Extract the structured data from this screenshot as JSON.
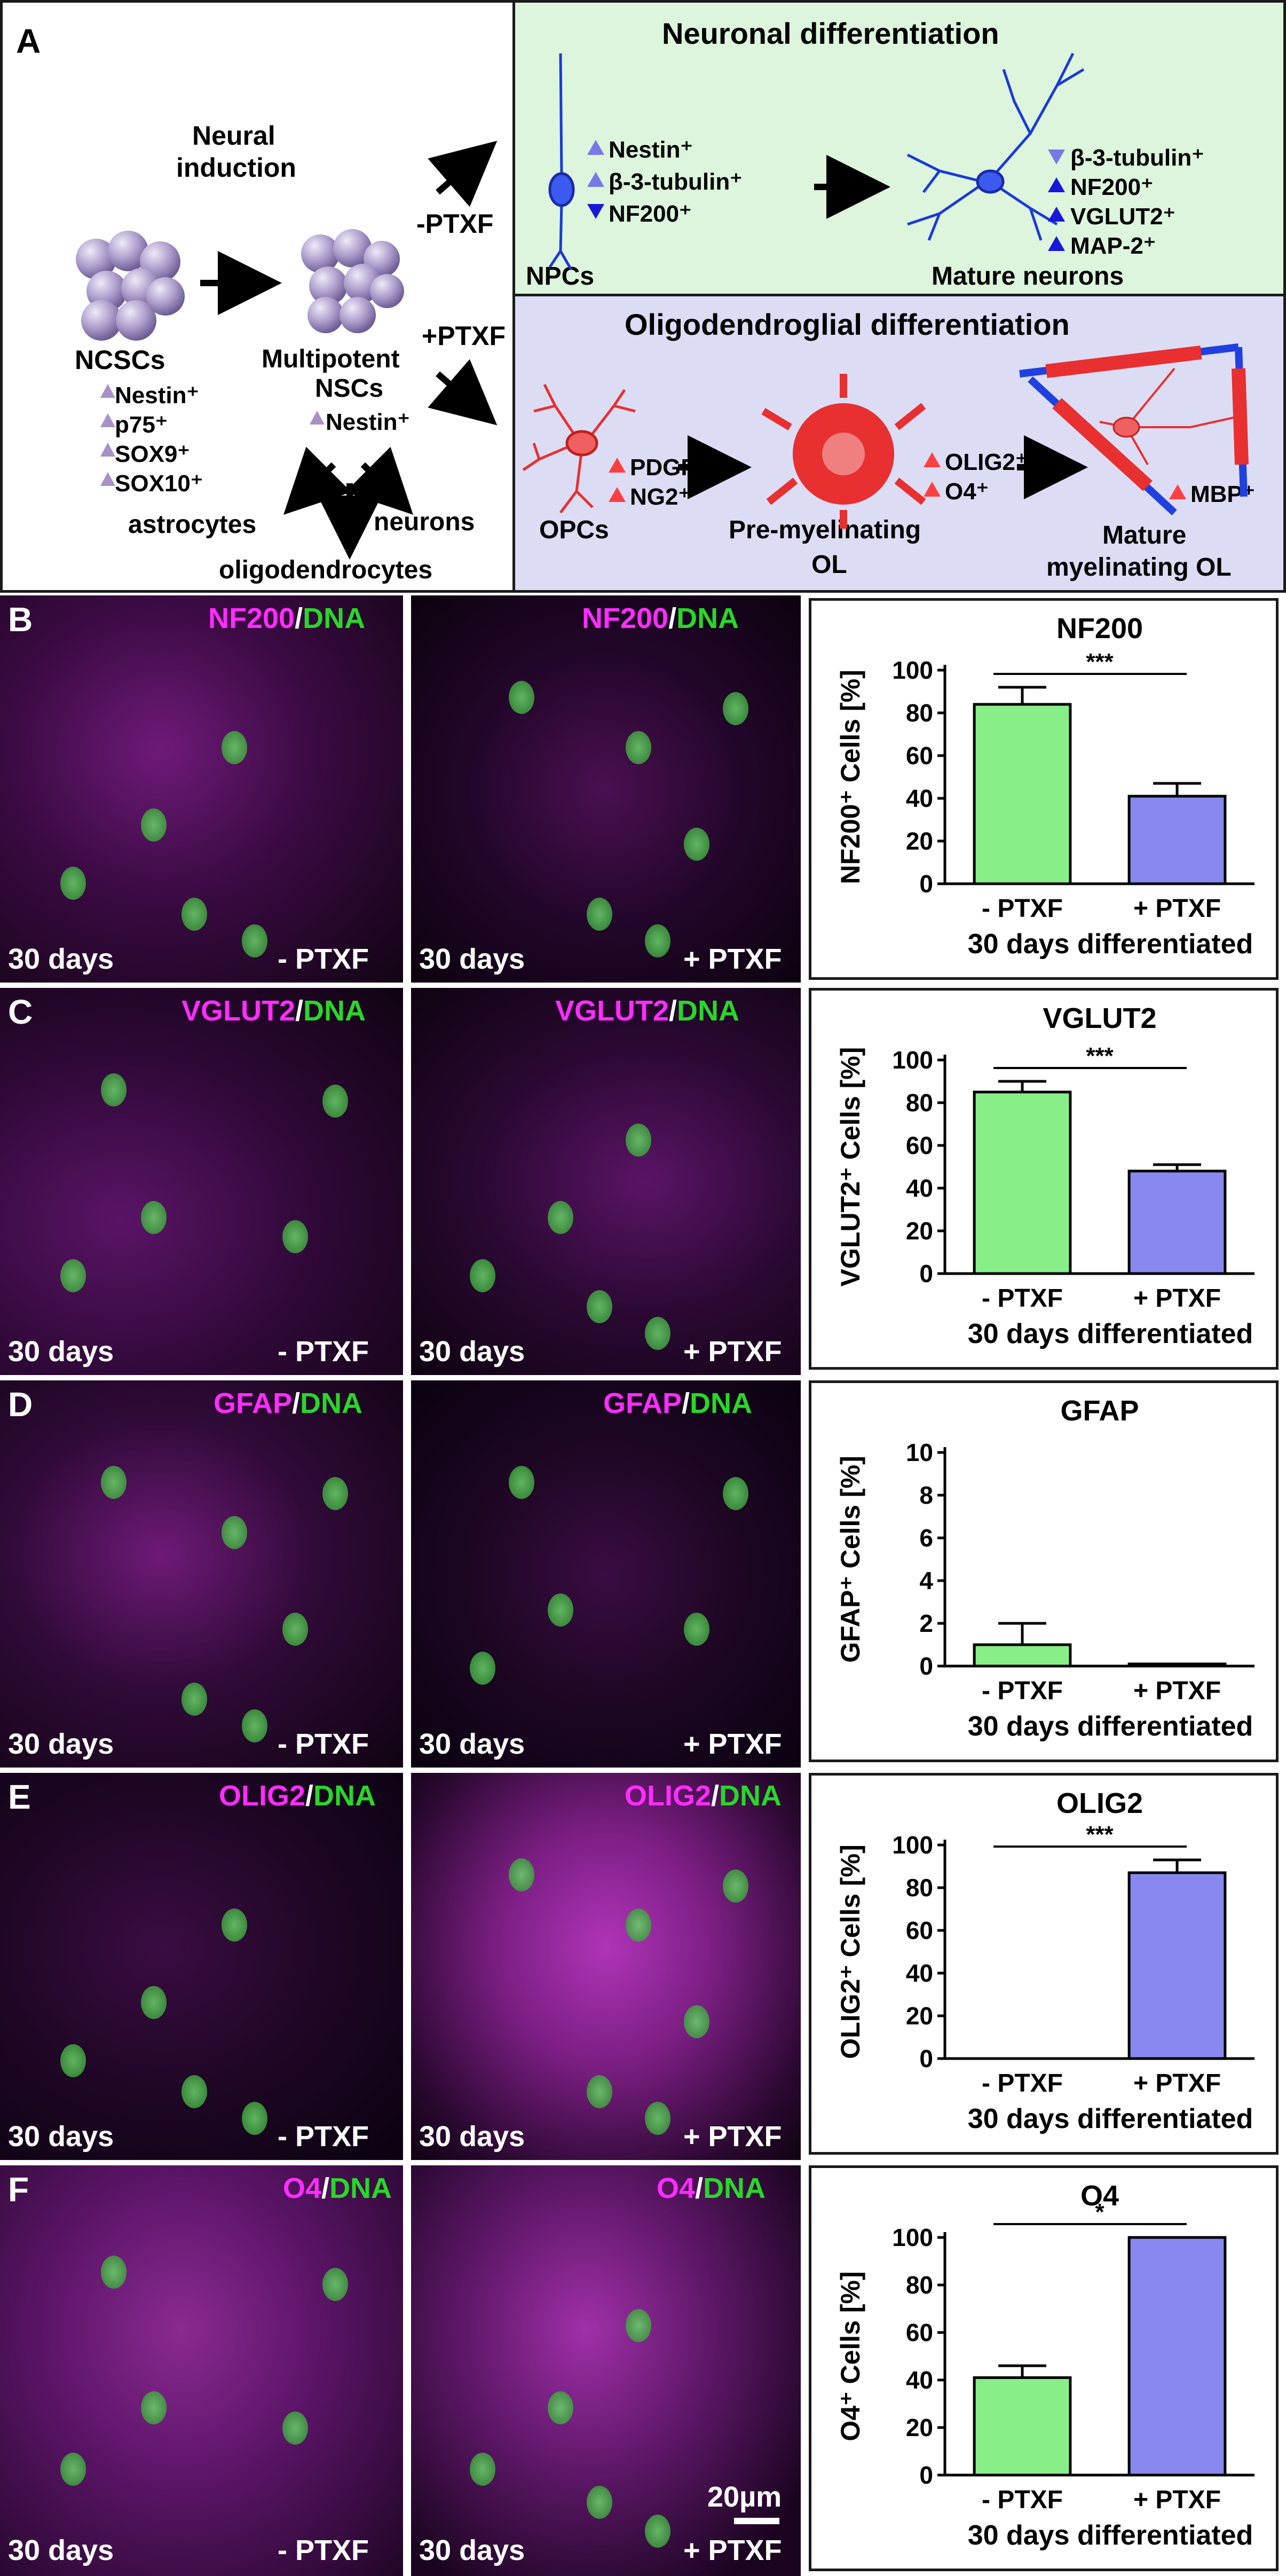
{
  "panel_a": {
    "letter": "A",
    "neural_induction": [
      "Neural",
      "induction"
    ],
    "minus_ptxf": "-PTXF",
    "plus_ptxf": "+PTXF",
    "ncscs": {
      "name": "NCSCs",
      "markers": [
        "Nestin⁺",
        "p75⁺",
        "SOX9⁺",
        "SOX10⁺"
      ]
    },
    "nscs": {
      "name": [
        "Multipotent",
        "NSCs"
      ],
      "markers": [
        "Nestin⁺"
      ]
    },
    "fates": {
      "astrocytes": "astrocytes",
      "neurons": "neurons",
      "oligodendrocytes": "oligodendrocytes"
    },
    "neuronal": {
      "title": "Neuronal differentiation",
      "npcs": "NPCs",
      "npc_markers": [
        "Nestin⁺",
        "β-3-tubulin⁺",
        "NF200⁺"
      ],
      "mature": "Mature neurons",
      "mature_markers": [
        "β-3-tubulin⁺",
        "NF200⁺",
        "VGLUT2⁺",
        "MAP-2⁺"
      ]
    },
    "oligo": {
      "title": "Oligodendroglial differentiation",
      "opcs": "OPCs",
      "opc_markers": [
        "PDGFRα⁺",
        "NG2⁺"
      ],
      "premyel": [
        "Pre-myelinating",
        "OL"
      ],
      "premyel_markers": [
        "OLIG2⁺",
        "O4⁺"
      ],
      "mature": [
        "Mature",
        "myelinating OL"
      ],
      "mature_markers": [
        "MBP⁺"
      ]
    },
    "colors": {
      "neuronal_bg": "#dcf5dc",
      "oligo_bg": "#dcdcf5",
      "sphere": "#a898c8",
      "neuron": "#1a3ad8",
      "oligo": "#e83030",
      "arrow_light": "#a890c8",
      "arrow_blue": "#7878e8",
      "arrow_dark": "#1818d8",
      "arrow_red": "#ff4040"
    }
  },
  "micro_common": {
    "days": "30 days",
    "minus": "- PTXF",
    "plus": "+ PTXF",
    "dna": "DNA",
    "scalebar": "20µm"
  },
  "rows": [
    {
      "letter": "B",
      "marker": "NF200"
    },
    {
      "letter": "C",
      "marker": "VGLUT2"
    },
    {
      "letter": "D",
      "marker": "GFAP"
    },
    {
      "letter": "E",
      "marker": "OLIG2"
    },
    {
      "letter": "F",
      "marker": "O4"
    }
  ],
  "chart_data": [
    {
      "type": "bar",
      "title": "NF200",
      "ylabel": "NF200⁺ Cells [%]",
      "xlabel": "30 days differentiated",
      "categories": [
        "- PTXF",
        "+ PTXF"
      ],
      "values": [
        84,
        41
      ],
      "errors": [
        8,
        6
      ],
      "ylim": [
        0,
        100
      ],
      "yticks": [
        0,
        20,
        40,
        60,
        80,
        100
      ],
      "significance": "***",
      "colors": [
        "#88ee88",
        "#8888f0"
      ]
    },
    {
      "type": "bar",
      "title": "VGLUT2",
      "ylabel": "VGLUT2⁺ Cells [%]",
      "xlabel": "30 days differentiated",
      "categories": [
        "- PTXF",
        "+ PTXF"
      ],
      "values": [
        85,
        48
      ],
      "errors": [
        5,
        3
      ],
      "ylim": [
        0,
        100
      ],
      "yticks": [
        0,
        20,
        40,
        60,
        80,
        100
      ],
      "significance": "***",
      "colors": [
        "#88ee88",
        "#8888f0"
      ]
    },
    {
      "type": "bar",
      "title": "GFAP",
      "ylabel": "GFAP⁺ Cells [%]",
      "xlabel": "30 days differentiated",
      "categories": [
        "- PTXF",
        "+ PTXF"
      ],
      "values": [
        1.0,
        0.1
      ],
      "errors": [
        1.0,
        0
      ],
      "ylim": [
        0,
        10
      ],
      "yticks": [
        0,
        2,
        4,
        6,
        8,
        10
      ],
      "significance": "",
      "colors": [
        "#88ee88",
        "#8888f0"
      ]
    },
    {
      "type": "bar",
      "title": "OLIG2",
      "ylabel": "OLIG2⁺ Cells [%]",
      "xlabel": "30 days differentiated",
      "categories": [
        "- PTXF",
        "+ PTXF"
      ],
      "values": [
        0,
        87
      ],
      "errors": [
        0,
        6
      ],
      "ylim": [
        0,
        100
      ],
      "yticks": [
        0,
        20,
        40,
        60,
        80,
        100
      ],
      "significance": "***",
      "colors": [
        "#88ee88",
        "#8888f0"
      ]
    },
    {
      "type": "bar",
      "title": "O4",
      "ylabel": "O4⁺ Cells [%]",
      "xlabel": "30 days differentiated",
      "categories": [
        "- PTXF",
        "+ PTXF"
      ],
      "values": [
        41,
        100
      ],
      "errors": [
        5,
        0
      ],
      "ylim": [
        0,
        100
      ],
      "yticks": [
        0,
        20,
        40,
        60,
        80,
        100
      ],
      "significance": "*",
      "colors": [
        "#88ee88",
        "#8888f0"
      ]
    }
  ]
}
